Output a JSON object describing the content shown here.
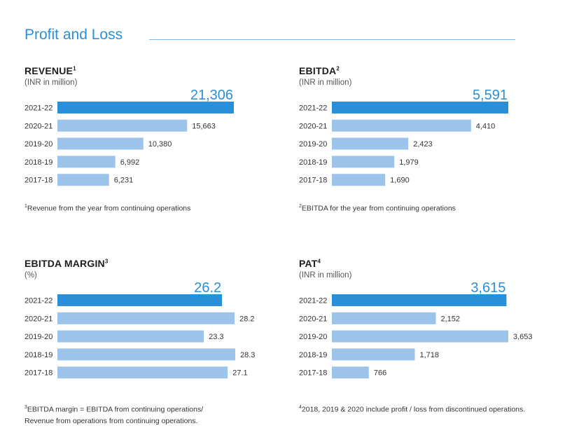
{
  "page": {
    "title": "Profit and Loss",
    "accent_color": "#2a8fd6",
    "highlight_bar_color": "#2a8fd6",
    "bar_color": "#9cc3ea"
  },
  "chart_data": [
    {
      "type": "bar",
      "orientation": "horizontal",
      "title": "REVENUE",
      "title_superscript": "1",
      "unit": "(INR in million)",
      "categories": [
        "2021-22",
        "2020-21",
        "2019-20",
        "2018-19",
        "2017-18"
      ],
      "values": [
        21306,
        15663,
        10380,
        6992,
        6231
      ],
      "value_labels": [
        "21,306",
        "15,663",
        "10,380",
        "6,992",
        "6,231"
      ],
      "highlight_index": 0,
      "footnote_mark": "1",
      "footnote": [
        "Revenue from the year from continuing operations"
      ]
    },
    {
      "type": "bar",
      "orientation": "horizontal",
      "title": "EBITDA",
      "title_superscript": "2",
      "unit": "(INR in million)",
      "categories": [
        "2021-22",
        "2020-21",
        "2019-20",
        "2018-19",
        "2017-18"
      ],
      "values": [
        5591,
        4410,
        2423,
        1979,
        1690
      ],
      "value_labels": [
        "5,591",
        "4,410",
        "2,423",
        "1,979",
        "1,690"
      ],
      "highlight_index": 0,
      "footnote_mark": "2",
      "footnote": [
        "EBITDA for the year from continuing operations"
      ]
    },
    {
      "type": "bar",
      "orientation": "horizontal",
      "title": "EBITDA MARGIN",
      "title_superscript": "3",
      "unit": "(%)",
      "categories": [
        "2021-22",
        "2020-21",
        "2019-20",
        "2018-19",
        "2017-18"
      ],
      "values": [
        26.2,
        28.2,
        23.3,
        28.3,
        27.1
      ],
      "value_labels": [
        "26.2",
        "28.2",
        "23.3",
        "28.3",
        "27.1"
      ],
      "highlight_index": 0,
      "footnote_mark": "3",
      "footnote": [
        "EBITDA margin = EBITDA from continuing operations/",
        "Revenue from operations from continuing operations."
      ]
    },
    {
      "type": "bar",
      "orientation": "horizontal",
      "title": "PAT",
      "title_superscript": "4",
      "unit": "(INR in million)",
      "categories": [
        "2021-22",
        "2020-21",
        "2019-20",
        "2018-19",
        "2017-18"
      ],
      "values": [
        3615,
        2152,
        3653,
        1718,
        766
      ],
      "value_labels": [
        "3,615",
        "2,152",
        "3,653",
        "1,718",
        "766"
      ],
      "highlight_index": 0,
      "footnote_mark": "4",
      "footnote": [
        "2018, 2019 & 2020 include profit / loss from discontinued operations."
      ]
    }
  ]
}
